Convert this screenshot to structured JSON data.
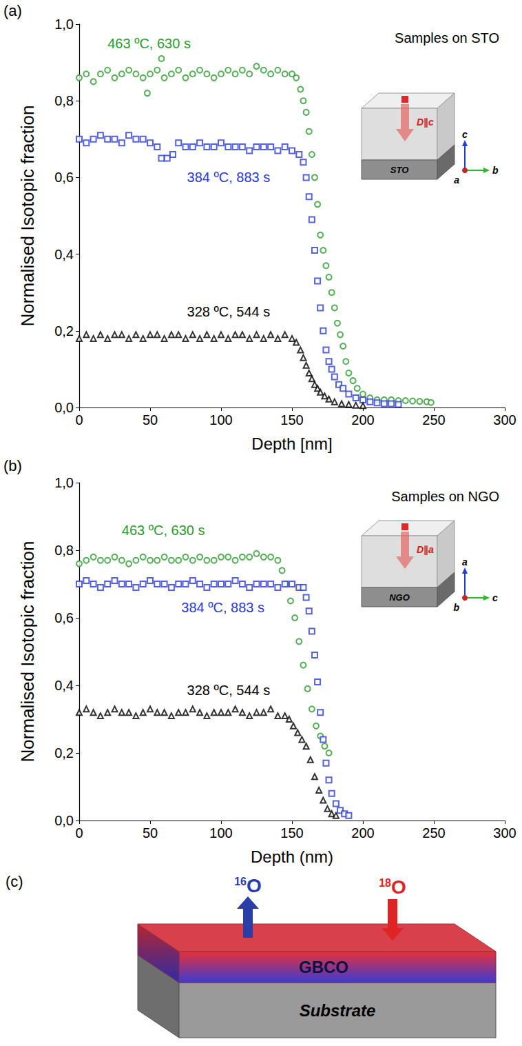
{
  "chart_data": [
    {
      "panel": "(a)",
      "type": "scatter",
      "annotations": [
        "Samples on STO"
      ],
      "x_label": "Depth [nm]",
      "y_label": "Normalised Isotopic fraction",
      "xlim": [
        0,
        300
      ],
      "xticks": [
        0,
        50,
        100,
        150,
        200,
        250,
        300
      ],
      "ylim": [
        0,
        1
      ],
      "yticks": [
        {
          "value": 0,
          "label": "0,0"
        },
        {
          "value": 0.2,
          "label": "0,2"
        },
        {
          "value": 0.4,
          "label": "0,4"
        },
        {
          "value": 0.6,
          "label": "0,6"
        },
        {
          "value": 0.8,
          "label": "0,8"
        },
        {
          "value": 1,
          "label": "1,0"
        }
      ],
      "grid": false,
      "inset": {
        "label": "D∥c",
        "substrate": "STO",
        "axes": {
          "up": "c",
          "right": "b",
          "out": "a"
        }
      },
      "series": [
        {
          "name": "463 ºC, 630 s",
          "color": "#2e9a2e",
          "marker": "circle",
          "x": [
            0,
            5,
            10,
            15,
            20,
            25,
            30,
            35,
            40,
            45,
            48,
            50,
            55,
            58,
            60,
            65,
            70,
            75,
            80,
            85,
            90,
            95,
            100,
            105,
            110,
            115,
            120,
            125,
            130,
            135,
            140,
            145,
            150,
            153,
            156,
            158,
            160,
            162,
            164,
            166,
            168,
            170,
            172,
            174,
            176,
            178,
            180,
            182,
            184,
            186,
            188,
            190,
            193,
            196,
            200,
            205,
            210,
            215,
            220,
            225,
            230,
            235,
            240,
            245,
            248
          ],
          "values": [
            0.86,
            0.87,
            0.85,
            0.87,
            0.88,
            0.86,
            0.87,
            0.88,
            0.87,
            0.86,
            0.82,
            0.87,
            0.88,
            0.91,
            0.86,
            0.87,
            0.88,
            0.86,
            0.87,
            0.88,
            0.87,
            0.86,
            0.87,
            0.88,
            0.87,
            0.88,
            0.87,
            0.89,
            0.88,
            0.87,
            0.88,
            0.87,
            0.87,
            0.86,
            0.83,
            0.8,
            0.77,
            0.72,
            0.66,
            0.6,
            0.53,
            0.45,
            0.41,
            0.37,
            0.34,
            0.3,
            0.26,
            0.22,
            0.19,
            0.16,
            0.12,
            0.09,
            0.07,
            0.05,
            0.035,
            0.025,
            0.02,
            0.02,
            0.02,
            0.018,
            0.018,
            0.017,
            0.016,
            0.015,
            0.013
          ]
        },
        {
          "name": "384 ºC, 883 s",
          "color": "#2b3bd1",
          "marker": "square",
          "x": [
            0,
            5,
            10,
            15,
            20,
            25,
            30,
            35,
            40,
            45,
            50,
            55,
            58,
            62,
            66,
            70,
            75,
            80,
            85,
            90,
            95,
            100,
            105,
            110,
            115,
            120,
            125,
            130,
            135,
            140,
            145,
            150,
            155,
            158,
            160,
            162,
            164,
            166,
            168,
            170,
            172,
            174,
            176,
            178,
            180,
            183,
            186,
            190,
            195,
            200,
            205,
            210,
            215,
            220,
            225
          ],
          "values": [
            0.7,
            0.69,
            0.7,
            0.71,
            0.7,
            0.7,
            0.69,
            0.71,
            0.7,
            0.7,
            0.69,
            0.68,
            0.65,
            0.65,
            0.66,
            0.69,
            0.68,
            0.68,
            0.69,
            0.68,
            0.68,
            0.69,
            0.68,
            0.68,
            0.68,
            0.67,
            0.68,
            0.68,
            0.68,
            0.67,
            0.68,
            0.67,
            0.66,
            0.64,
            0.6,
            0.55,
            0.49,
            0.41,
            0.33,
            0.26,
            0.2,
            0.15,
            0.12,
            0.1,
            0.08,
            0.06,
            0.05,
            0.035,
            0.025,
            0.02,
            0.015,
            0.012,
            0.01,
            0.01,
            0.008
          ]
        },
        {
          "name": "328 ºC, 544 s",
          "color": "#000000",
          "marker": "triangle",
          "x": [
            0,
            5,
            10,
            15,
            20,
            25,
            30,
            35,
            40,
            45,
            50,
            55,
            60,
            65,
            70,
            75,
            80,
            85,
            90,
            95,
            100,
            105,
            110,
            115,
            120,
            125,
            130,
            135,
            140,
            145,
            150,
            153,
            156,
            158,
            160,
            162,
            164,
            166,
            168,
            170,
            173,
            176,
            180,
            185,
            190,
            195,
            200
          ],
          "values": [
            0.18,
            0.19,
            0.18,
            0.19,
            0.18,
            0.19,
            0.19,
            0.18,
            0.19,
            0.18,
            0.19,
            0.19,
            0.18,
            0.19,
            0.19,
            0.18,
            0.19,
            0.18,
            0.19,
            0.18,
            0.19,
            0.18,
            0.19,
            0.19,
            0.18,
            0.19,
            0.18,
            0.19,
            0.18,
            0.19,
            0.18,
            0.17,
            0.15,
            0.13,
            0.11,
            0.09,
            0.075,
            0.06,
            0.05,
            0.04,
            0.03,
            0.022,
            0.015,
            0.01,
            0.008,
            0.006,
            0.005
          ]
        }
      ]
    },
    {
      "panel": "(b)",
      "type": "scatter",
      "annotations": [
        "Samples on NGO"
      ],
      "x_label": "Depth (nm)",
      "y_label": "Normalised Isotopic fraction",
      "xlim": [
        0,
        300
      ],
      "xticks": [
        0,
        50,
        100,
        150,
        200,
        250,
        300
      ],
      "ylim": [
        0,
        1
      ],
      "yticks": [
        {
          "value": 0,
          "label": "0,0"
        },
        {
          "value": 0.2,
          "label": "0,2"
        },
        {
          "value": 0.4,
          "label": "0,4"
        },
        {
          "value": 0.6,
          "label": "0,6"
        },
        {
          "value": 0.8,
          "label": "0,8"
        },
        {
          "value": 1,
          "label": "1,0"
        }
      ],
      "grid": false,
      "inset": {
        "label": "D∥a",
        "substrate": "NGO",
        "axes": {
          "up": "a",
          "right": "c",
          "out": "b"
        }
      },
      "series": [
        {
          "name": "463 ºC, 630 s",
          "color": "#2e9a2e",
          "marker": "circle",
          "x": [
            0,
            5,
            10,
            15,
            20,
            25,
            30,
            35,
            40,
            45,
            50,
            55,
            60,
            65,
            70,
            75,
            80,
            85,
            90,
            95,
            100,
            105,
            110,
            115,
            120,
            125,
            130,
            135,
            140,
            143,
            146,
            149,
            152,
            155,
            158,
            161,
            164,
            167,
            170,
            173,
            176
          ],
          "values": [
            0.76,
            0.77,
            0.78,
            0.77,
            0.77,
            0.78,
            0.77,
            0.76,
            0.77,
            0.78,
            0.77,
            0.77,
            0.78,
            0.77,
            0.77,
            0.78,
            0.77,
            0.78,
            0.77,
            0.77,
            0.78,
            0.78,
            0.77,
            0.78,
            0.78,
            0.79,
            0.78,
            0.78,
            0.77,
            0.74,
            0.7,
            0.65,
            0.6,
            0.53,
            0.46,
            0.39,
            0.33,
            0.28,
            0.25,
            0.22,
            0.2
          ]
        },
        {
          "name": "384 ºC, 883 s",
          "color": "#2b3bd1",
          "marker": "square",
          "x": [
            0,
            5,
            10,
            15,
            20,
            25,
            30,
            35,
            40,
            45,
            50,
            55,
            60,
            65,
            70,
            75,
            80,
            85,
            90,
            95,
            100,
            105,
            110,
            115,
            120,
            125,
            130,
            135,
            140,
            145,
            150,
            155,
            158,
            160,
            162,
            164,
            166,
            168,
            170,
            172,
            174,
            176,
            178,
            181,
            184,
            187,
            190
          ],
          "values": [
            0.7,
            0.71,
            0.7,
            0.69,
            0.7,
            0.71,
            0.7,
            0.7,
            0.69,
            0.7,
            0.71,
            0.7,
            0.7,
            0.69,
            0.7,
            0.7,
            0.71,
            0.7,
            0.69,
            0.7,
            0.7,
            0.7,
            0.71,
            0.7,
            0.69,
            0.7,
            0.7,
            0.7,
            0.69,
            0.7,
            0.7,
            0.69,
            0.69,
            0.66,
            0.62,
            0.56,
            0.49,
            0.41,
            0.32,
            0.24,
            0.17,
            0.12,
            0.08,
            0.05,
            0.03,
            0.02,
            0.015
          ]
        },
        {
          "name": "328 ºC, 544 s",
          "color": "#000000",
          "marker": "triangle",
          "x": [
            0,
            5,
            10,
            15,
            20,
            25,
            30,
            35,
            40,
            45,
            50,
            55,
            60,
            65,
            70,
            75,
            80,
            85,
            90,
            95,
            100,
            105,
            110,
            115,
            120,
            125,
            130,
            135,
            140,
            145,
            148,
            151,
            154,
            157,
            160,
            163,
            166,
            169,
            172,
            175,
            178,
            181
          ],
          "values": [
            0.32,
            0.33,
            0.32,
            0.31,
            0.32,
            0.33,
            0.32,
            0.32,
            0.31,
            0.32,
            0.33,
            0.32,
            0.32,
            0.31,
            0.32,
            0.32,
            0.33,
            0.32,
            0.31,
            0.32,
            0.32,
            0.32,
            0.33,
            0.32,
            0.31,
            0.32,
            0.32,
            0.33,
            0.31,
            0.31,
            0.3,
            0.28,
            0.26,
            0.24,
            0.22,
            0.18,
            0.13,
            0.09,
            0.06,
            0.035,
            0.02,
            0.015
          ]
        }
      ]
    }
  ],
  "diagram": {
    "panel": "(c)",
    "film": "GBCO",
    "substrate": "Substrate",
    "out_arrow": {
      "mass": "16",
      "element": "O"
    },
    "in_arrow": {
      "mass": "18",
      "element": "O"
    }
  }
}
